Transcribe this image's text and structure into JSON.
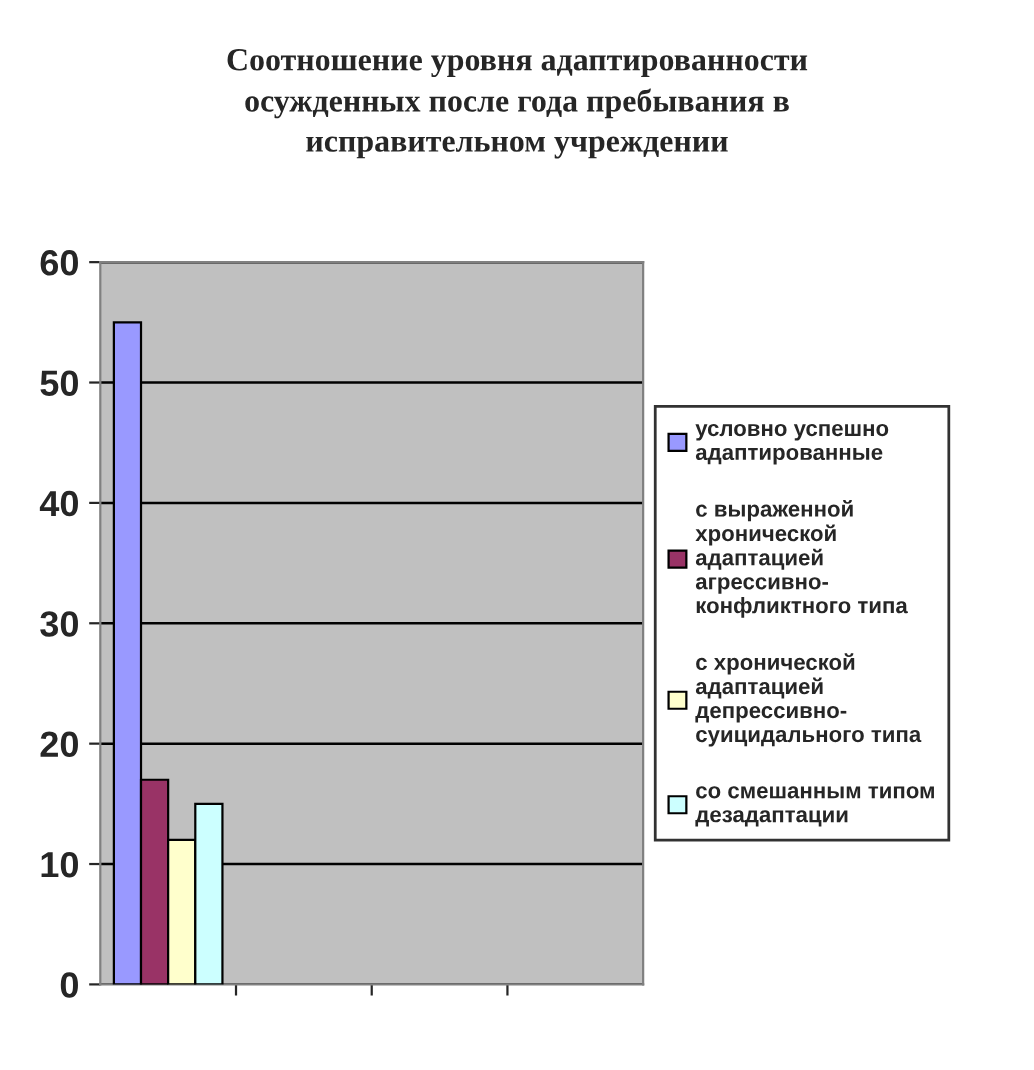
{
  "chart_data": {
    "type": "bar",
    "title": "Соотношение уровня адаптированности осужденных после года пребывания в исправительном учреждении",
    "categories": [
      null,
      null,
      null,
      null
    ],
    "series": [
      {
        "name": "условно успешно адаптированные",
        "color": "#9999ff",
        "values": [
          55,
          null,
          null,
          null
        ]
      },
      {
        "name": "с выраженной хронической адаптацией агрессивно-конфликтного типа",
        "color": "#993366",
        "values": [
          17,
          null,
          null,
          null
        ]
      },
      {
        "name": "с хронической адаптацией депрессивно-суицидального типа",
        "color": "#ffffcc",
        "values": [
          12,
          null,
          null,
          null
        ]
      },
      {
        "name": "со смешанным типом дезадаптации",
        "color": "#ccffff",
        "values": [
          15,
          null,
          null,
          null
        ]
      }
    ],
    "ylim": [
      0,
      60
    ],
    "yticks": [
      0,
      10,
      20,
      30,
      40,
      50,
      60
    ],
    "grid": "y",
    "legend": "right"
  }
}
